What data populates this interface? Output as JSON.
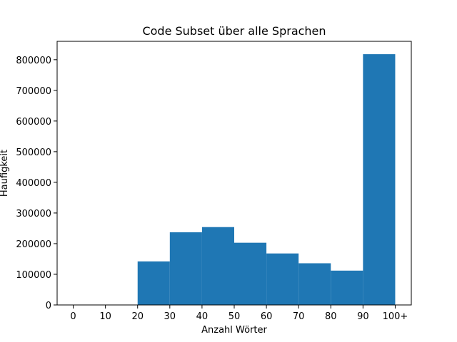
{
  "chart_data": {
    "type": "bar",
    "title": "Code Subset über alle Sprachen",
    "xlabel": "Anzahl Wörter",
    "ylabel": "Haufigkeit",
    "bin_edges": [
      0,
      10,
      20,
      30,
      40,
      50,
      60,
      70,
      80,
      90,
      100
    ],
    "x_tick_labels": [
      "0",
      "10",
      "20",
      "30",
      "40",
      "50",
      "60",
      "70",
      "80",
      "90",
      "100+"
    ],
    "values": [
      0,
      0,
      142000,
      237000,
      254000,
      203000,
      168000,
      136000,
      112000,
      818000
    ],
    "xlim": [
      -5,
      105
    ],
    "ylim": [
      0,
      860000
    ],
    "y_ticks": [
      0,
      100000,
      200000,
      300000,
      400000,
      500000,
      600000,
      700000,
      800000
    ],
    "bar_color": "#1f77b4",
    "grid": false,
    "legend": "none"
  }
}
